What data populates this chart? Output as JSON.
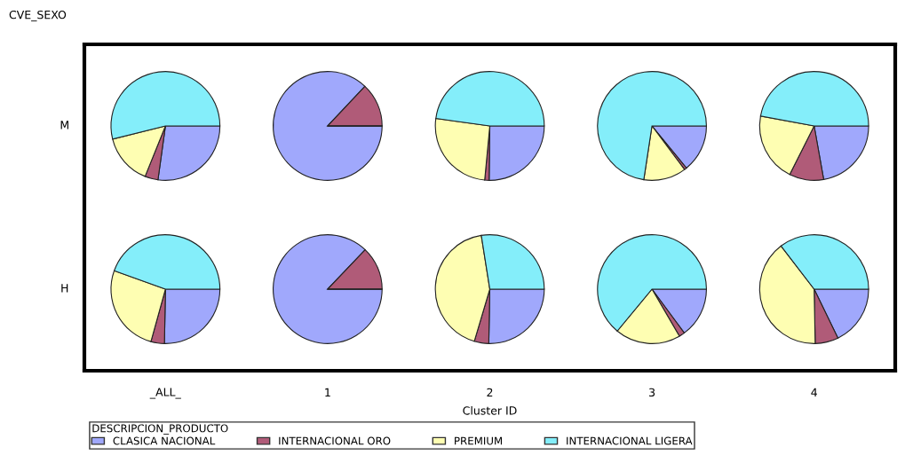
{
  "chart_data": [
    {
      "type": "pie",
      "ylabel": "M",
      "categories": [
        "CLASICA NACIONAL",
        "INTERNACIONAL ORO",
        "PREMIUM",
        "INTERNACIONAL LIGERA"
      ],
      "values": [
        27.2,
        3.9,
        15.0,
        53.9
      ],
      "colors": [
        "#a0a8fc",
        "#b05b78",
        "#fefeb2",
        "#84eefa"
      ],
      "annotations": [
        "CVE_SEXO",
        "Cluster ID"
      ],
      "legend": "bottom",
      "legend_title": "DESCRIPCION_PRODUCTO"
    },
    {
      "type": "pie",
      "values": [
        87.0,
        13.0,
        0,
        0
      ],
      "colors": [
        "#a0a8fc",
        "#b05b78",
        "#fefeb2",
        "#84eefa"
      ]
    },
    {
      "type": "pie",
      "values": [
        25.2,
        1.3,
        25.7,
        47.8
      ],
      "colors": [
        "#a0a8fc",
        "#b05b78",
        "#fefeb2",
        "#84eefa"
      ]
    },
    {
      "type": "pie",
      "values": [
        14.1,
        0.7,
        12.6,
        72.6
      ],
      "colors": [
        "#a0a8fc",
        "#b05b78",
        "#fefeb2",
        "#84eefa"
      ]
    },
    {
      "type": "pie",
      "values": [
        22.2,
        10.2,
        20.5,
        47.1
      ],
      "colors": [
        "#a0a8fc",
        "#b05b78",
        "#fefeb2",
        "#84eefa"
      ]
    },
    {
      "type": "pie",
      "xlabel": "_ALL_",
      "ylabel": "H",
      "values": [
        25.3,
        4.0,
        26.2,
        44.5
      ],
      "colors": [
        "#a0a8fc",
        "#b05b78",
        "#fefeb2",
        "#84eefa"
      ]
    },
    {
      "type": "pie",
      "xlabel": "1",
      "values": [
        87.1,
        12.9,
        0,
        0
      ],
      "colors": [
        "#a0a8fc",
        "#b05b78",
        "#fefeb2",
        "#84eefa"
      ]
    },
    {
      "type": "pie",
      "xlabel": "2",
      "values": [
        25.3,
        4.3,
        42.9,
        27.5
      ],
      "colors": [
        "#a0a8fc",
        "#b05b78",
        "#fefeb2",
        "#84eefa"
      ]
    },
    {
      "type": "pie",
      "xlabel": "3",
      "values": [
        14.9,
        1.7,
        19.4,
        64.0
      ],
      "colors": [
        "#a0a8fc",
        "#b05b78",
        "#fefeb2",
        "#84eefa"
      ]
    },
    {
      "type": "pie",
      "xlabel": "4",
      "values": [
        17.8,
        6.9,
        39.9,
        35.4
      ],
      "colors": [
        "#a0a8fc",
        "#b05b78",
        "#fefeb2",
        "#84eefa"
      ]
    }
  ]
}
